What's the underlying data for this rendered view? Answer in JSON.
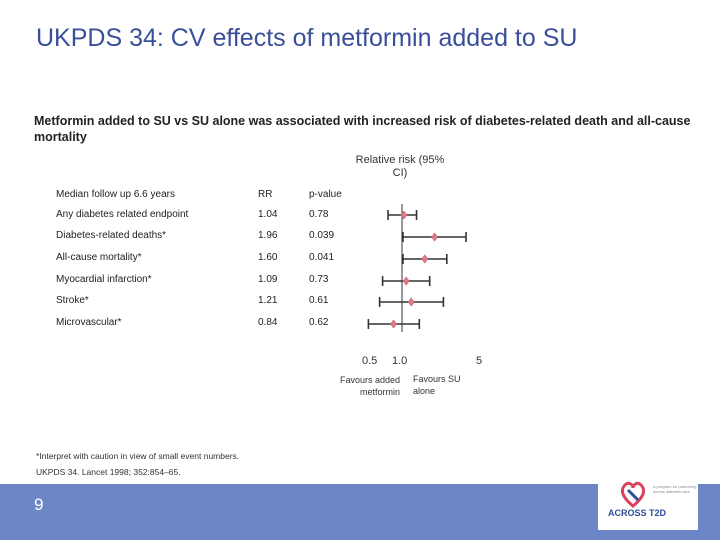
{
  "slide": {
    "title": "UKPDS 34: CV effects of metformin added to SU",
    "subtitle": "Metformin added to SU vs SU alone was associated with increased risk of diabetes-related death and all-cause mortality",
    "page_number": "9",
    "footnote": "*Interpret with caution in view of small event numbers.",
    "reference": "UKPDS 34. Lancet 1998; 352:854–65.",
    "logo": {
      "name": "ACROSS T2D",
      "tagline": "A program for partnering across diabetes care",
      "icon": "heart-ribbon-icon"
    }
  },
  "table": {
    "header": {
      "label": "Median follow up 6.6 years",
      "rr": "RR",
      "p": "p-value"
    },
    "rows": [
      {
        "label": "Any diabetes related endpoint",
        "rr": "1.04",
        "p": "0.78"
      },
      {
        "label": "Diabetes-related deaths*",
        "rr": "1.96",
        "p": "0.039"
      },
      {
        "label": "All-cause mortality*",
        "rr": "1.60",
        "p": "0.041"
      },
      {
        "label": "Myocardial infarction*",
        "rr": "1.09",
        "p": "0.73"
      },
      {
        "label": "Stroke*",
        "rr": "1.21",
        "p": "0.61"
      },
      {
        "label": "Microvascular*",
        "rr": "0.84",
        "p": "0.62"
      }
    ]
  },
  "chart_data": {
    "type": "forest",
    "title": "Relative risk (95% CI)",
    "xscale": "log",
    "xlim": [
      0.5,
      5
    ],
    "ticks": [
      "0.5",
      "1.0",
      "5"
    ],
    "reference_line": 1.0,
    "left_label": "Favours added metformin",
    "right_label": "Favours SU alone",
    "marker_color": "#e07a88",
    "ci_color": "#333333",
    "points": [
      {
        "label": "Any diabetes related endpoint",
        "rr": 1.04,
        "low": 0.75,
        "high": 1.35
      },
      {
        "label": "Diabetes-related deaths*",
        "rr": 1.96,
        "low": 1.02,
        "high": 3.75
      },
      {
        "label": "All-cause mortality*",
        "rr": 1.6,
        "low": 1.02,
        "high": 2.52
      },
      {
        "label": "Myocardial infarction*",
        "rr": 1.09,
        "low": 0.67,
        "high": 1.77
      },
      {
        "label": "Stroke*",
        "rr": 1.21,
        "low": 0.63,
        "high": 2.35
      },
      {
        "label": "Microvascular*",
        "rr": 0.84,
        "low": 0.5,
        "high": 1.43
      }
    ]
  }
}
